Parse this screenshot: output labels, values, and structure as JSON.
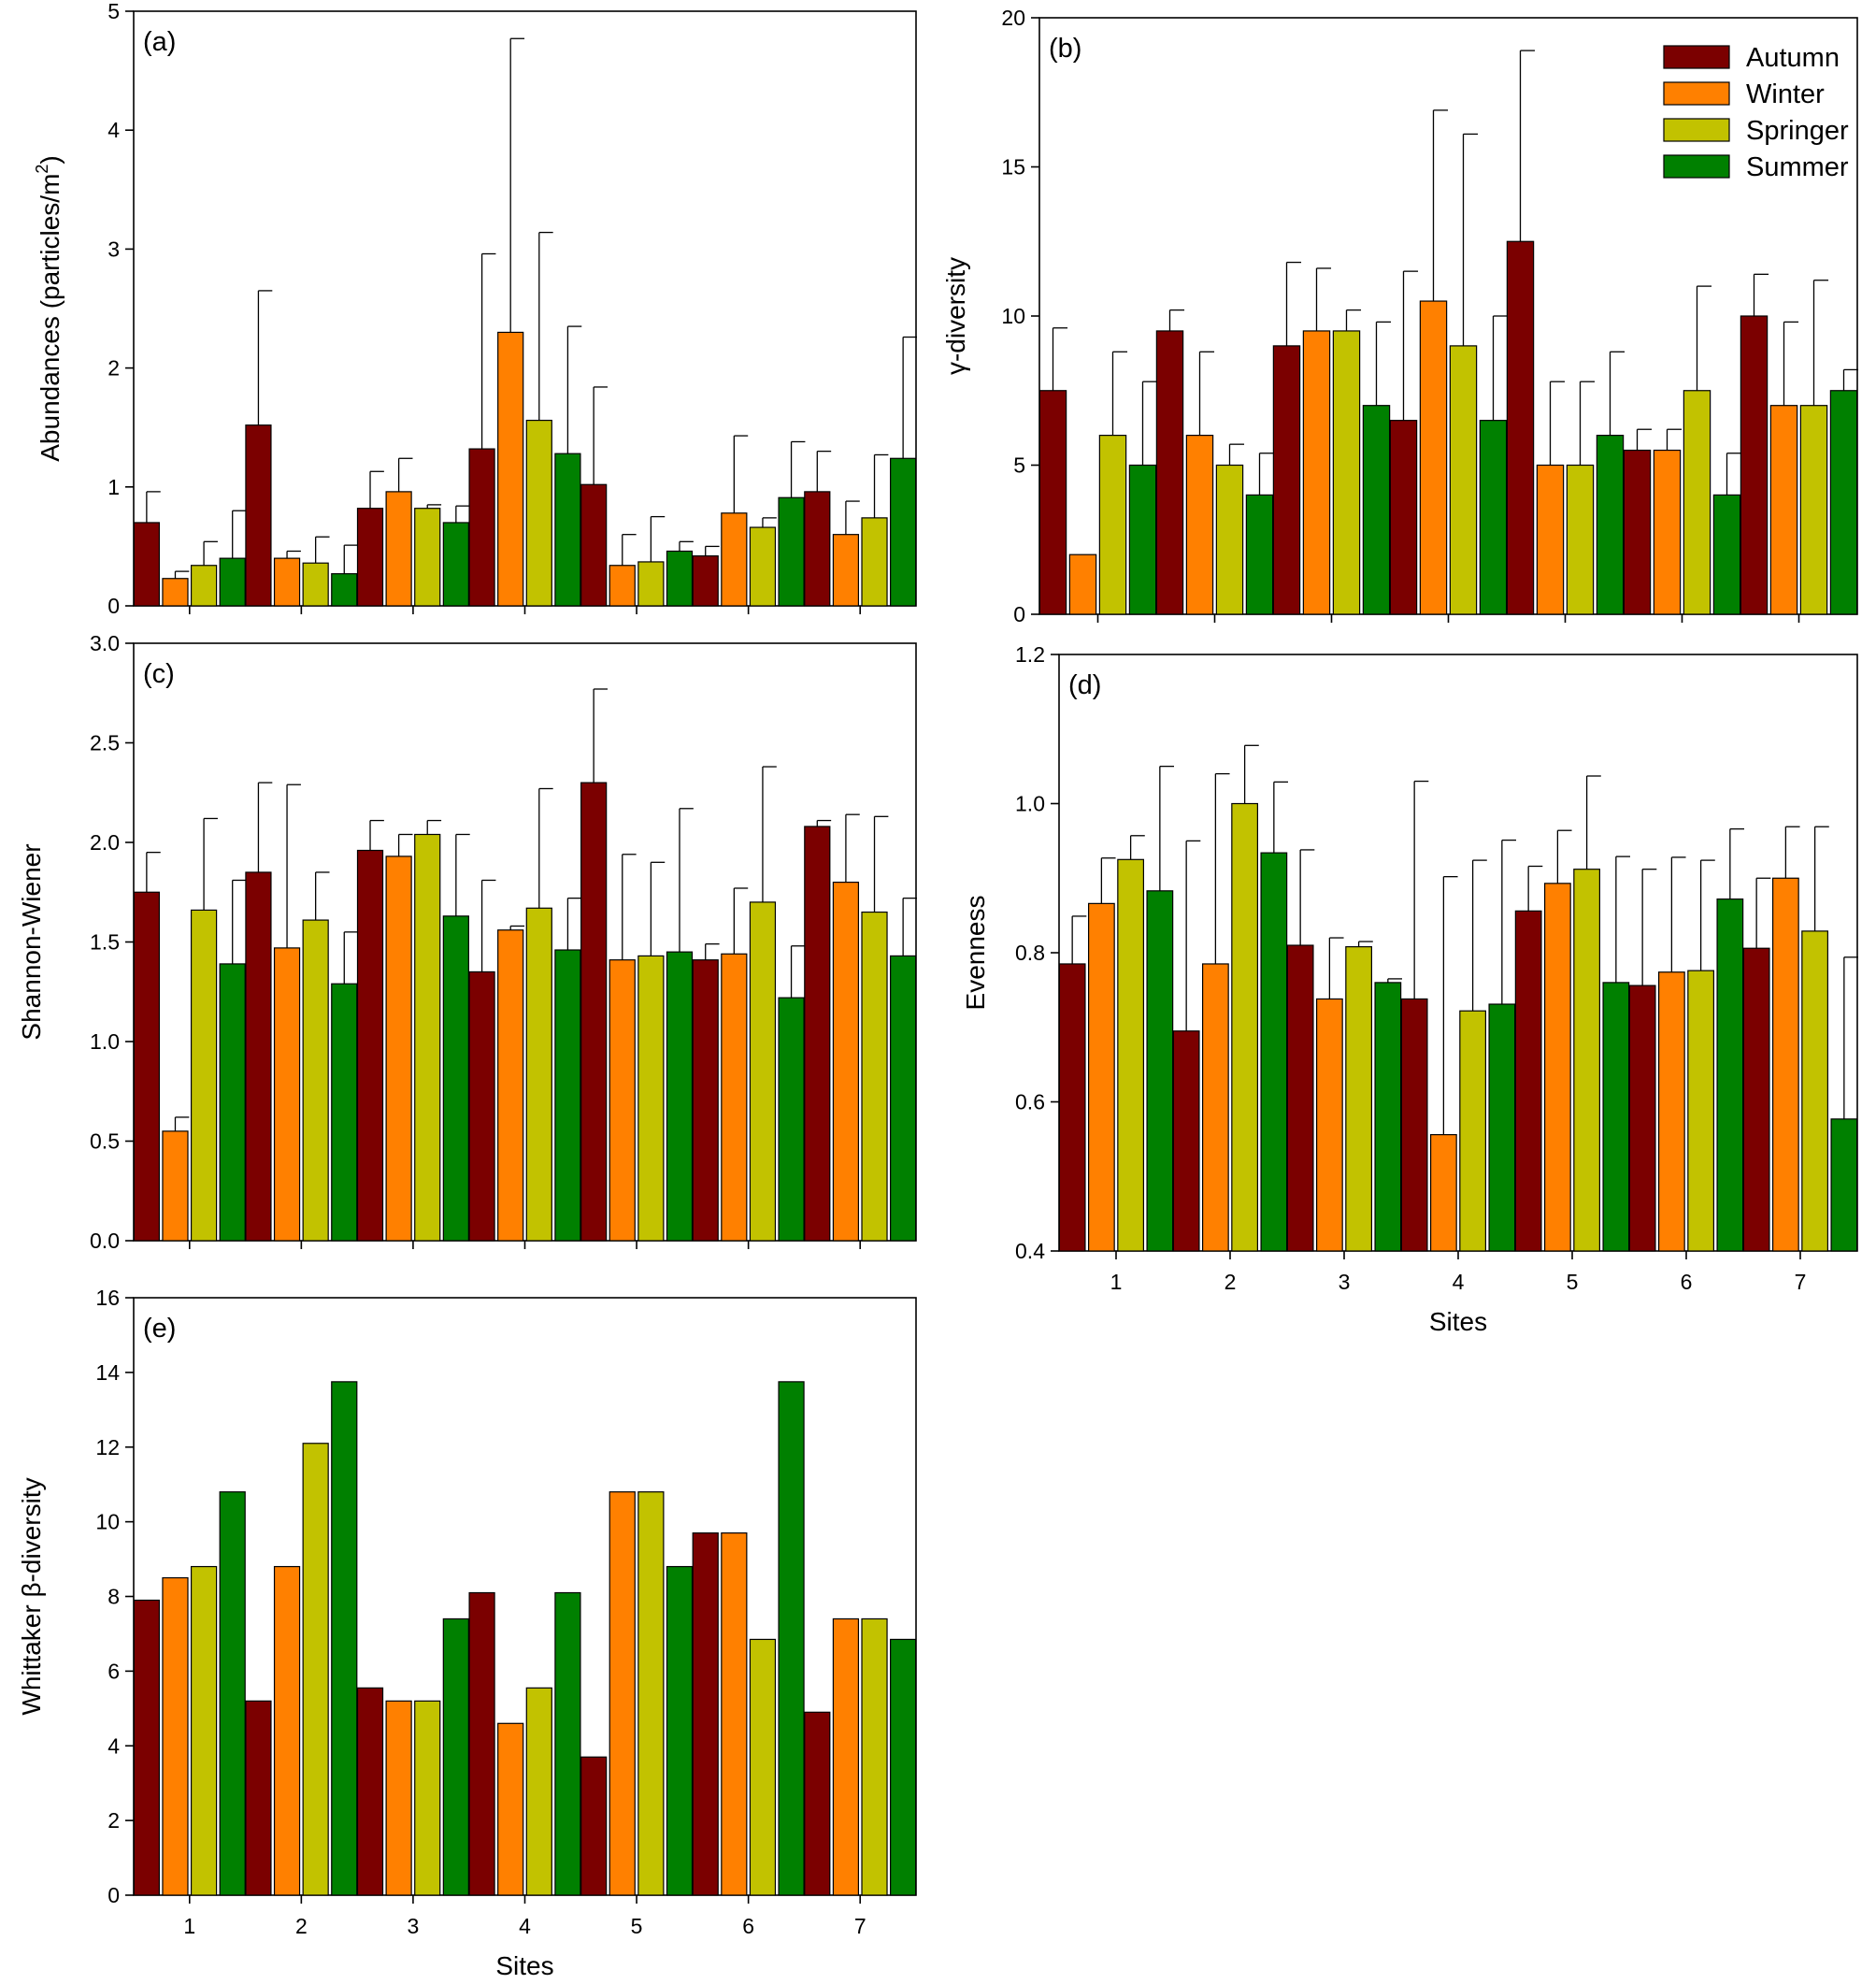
{
  "figure": {
    "series_names": [
      "Autumn",
      "Winter",
      "Springer",
      "Summer"
    ],
    "series_colors": [
      "#7b0000",
      "#ff8000",
      "#c2c200",
      "#008000"
    ]
  },
  "chart_data": [
    {
      "id": "a",
      "type": "bar",
      "panel_label": "(a)",
      "ylabel": "Abundances (particles/m²)",
      "ylabel_main": "Abundances (particles/m",
      "ylabel_sup": "2",
      "ylabel_tail": ")",
      "xlabel": "",
      "ylim": [
        0,
        5
      ],
      "yticks": [
        0,
        1,
        2,
        3,
        4,
        5
      ],
      "ytick_labels": [
        "0",
        "1",
        "2",
        "3",
        "4",
        "5"
      ],
      "categories": [
        "1",
        "2",
        "3",
        "4",
        "5",
        "6",
        "7"
      ],
      "show_xtick_labels": false,
      "series": [
        {
          "name": "Autumn",
          "values": [
            0.7,
            1.52,
            0.82,
            1.32,
            1.02,
            0.42,
            0.96
          ],
          "errors": [
            0.26,
            1.13,
            0.31,
            1.64,
            0.82,
            0.08,
            0.34
          ]
        },
        {
          "name": "Winter",
          "values": [
            0.23,
            0.4,
            0.96,
            2.3,
            0.34,
            0.78,
            0.6
          ],
          "errors": [
            0.06,
            0.06,
            0.28,
            2.47,
            0.26,
            0.65,
            0.28
          ]
        },
        {
          "name": "Springer",
          "values": [
            0.34,
            0.36,
            0.82,
            1.56,
            0.37,
            0.66,
            0.74
          ],
          "errors": [
            0.2,
            0.22,
            0.03,
            1.58,
            0.38,
            0.08,
            0.53
          ]
        },
        {
          "name": "Summer",
          "values": [
            0.4,
            0.27,
            0.7,
            1.28,
            0.46,
            0.91,
            1.24
          ],
          "errors": [
            0.4,
            0.24,
            0.14,
            1.07,
            0.08,
            0.47,
            1.02
          ]
        }
      ]
    },
    {
      "id": "b",
      "type": "bar",
      "panel_label": "(b)",
      "ylabel": "γ-diversity",
      "xlabel": "",
      "ylim": [
        0,
        20
      ],
      "yticks": [
        0,
        5,
        10,
        15,
        20
      ],
      "ytick_labels": [
        "0",
        "5",
        "10",
        "15",
        "20"
      ],
      "categories": [
        "1",
        "2",
        "3",
        "4",
        "5",
        "6",
        "7"
      ],
      "show_xtick_labels": false,
      "legend": {
        "position": "top-right",
        "entries": [
          "Autumn",
          "Winter",
          "Springer",
          "Summer"
        ]
      },
      "series": [
        {
          "name": "Autumn",
          "values": [
            7.5,
            9.5,
            9.0,
            6.5,
            12.5,
            5.5,
            10.0
          ],
          "errors": [
            2.1,
            0.7,
            2.8,
            5.0,
            6.4,
            0.7,
            1.4
          ]
        },
        {
          "name": "Winter",
          "values": [
            2.0,
            6.0,
            9.5,
            10.5,
            5.0,
            5.5,
            7.0
          ],
          "errors": [
            0.0,
            2.8,
            2.1,
            6.4,
            2.8,
            0.7,
            2.8
          ]
        },
        {
          "name": "Springer",
          "values": [
            6.0,
            5.0,
            9.5,
            9.0,
            5.0,
            7.5,
            7.0
          ],
          "errors": [
            2.8,
            0.7,
            0.7,
            7.1,
            2.8,
            3.5,
            4.2
          ]
        },
        {
          "name": "Summer",
          "values": [
            5.0,
            4.0,
            7.0,
            6.5,
            6.0,
            4.0,
            7.5
          ],
          "errors": [
            2.8,
            1.4,
            2.8,
            3.5,
            2.8,
            1.4,
            0.7
          ]
        }
      ]
    },
    {
      "id": "c",
      "type": "bar",
      "panel_label": "(c)",
      "ylabel": "Shannon-Wiener",
      "xlabel": "",
      "ylim": [
        0,
        3.0
      ],
      "yticks": [
        0,
        0.5,
        1.0,
        1.5,
        2.0,
        2.5,
        3.0
      ],
      "ytick_labels": [
        "0.0",
        "0.5",
        "1.0",
        "1.5",
        "2.0",
        "2.5",
        "3.0"
      ],
      "categories": [
        "1",
        "2",
        "3",
        "4",
        "5",
        "6",
        "7"
      ],
      "show_xtick_labels": false,
      "series": [
        {
          "name": "Autumn",
          "values": [
            1.75,
            1.85,
            1.96,
            1.35,
            2.3,
            1.41,
            2.08
          ],
          "errors": [
            0.2,
            0.45,
            0.15,
            0.46,
            0.47,
            0.08,
            0.03
          ]
        },
        {
          "name": "Winter",
          "values": [
            0.55,
            1.47,
            1.93,
            1.56,
            1.41,
            1.44,
            1.8
          ],
          "errors": [
            0.07,
            0.82,
            0.11,
            0.02,
            0.53,
            0.33,
            0.34
          ]
        },
        {
          "name": "Springer",
          "values": [
            1.66,
            1.61,
            2.04,
            1.67,
            1.43,
            1.7,
            1.65
          ],
          "errors": [
            0.46,
            0.24,
            0.07,
            0.6,
            0.47,
            0.68,
            0.48
          ]
        },
        {
          "name": "Summer",
          "values": [
            1.39,
            1.29,
            1.63,
            1.46,
            1.45,
            1.22,
            1.43
          ],
          "errors": [
            0.42,
            0.26,
            0.41,
            0.26,
            0.72,
            0.26,
            0.29
          ]
        }
      ]
    },
    {
      "id": "d",
      "type": "bar",
      "panel_label": "(d)",
      "ylabel": "Evenness",
      "xlabel": "Sites",
      "ylim": [
        0.4,
        1.2
      ],
      "yticks": [
        0.4,
        0.6,
        0.8,
        1.0,
        1.2
      ],
      "ytick_labels": [
        "0.4",
        "0.6",
        "0.8",
        "1.0",
        "1.2"
      ],
      "categories": [
        "1",
        "2",
        "3",
        "4",
        "5",
        "6",
        "7"
      ],
      "show_xtick_labels": true,
      "series": [
        {
          "name": "Autumn",
          "values": [
            0.785,
            0.695,
            0.81,
            0.738,
            0.856,
            0.756,
            0.806
          ],
          "errors": [
            0.064,
            0.255,
            0.128,
            0.292,
            0.06,
            0.156,
            0.094
          ]
        },
        {
          "name": "Winter",
          "values": [
            0.866,
            0.785,
            0.738,
            0.556,
            0.893,
            0.774,
            0.9
          ],
          "errors": [
            0.061,
            0.255,
            0.082,
            0.346,
            0.071,
            0.154,
            0.069
          ]
        },
        {
          "name": "Springer",
          "values": [
            0.925,
            1.0,
            0.808,
            0.722,
            0.912,
            0.776,
            0.829
          ],
          "errors": [
            0.032,
            0.078,
            0.007,
            0.202,
            0.125,
            0.148,
            0.14
          ]
        },
        {
          "name": "Summer",
          "values": [
            0.883,
            0.934,
            0.76,
            0.731,
            0.76,
            0.872,
            0.577
          ],
          "errors": [
            0.167,
            0.095,
            0.005,
            0.22,
            0.169,
            0.094,
            0.217
          ]
        }
      ]
    },
    {
      "id": "e",
      "type": "bar",
      "panel_label": "(e)",
      "ylabel": "Whittaker β-diversity",
      "xlabel": "Sites",
      "ylim": [
        0,
        16
      ],
      "yticks": [
        0,
        2,
        4,
        6,
        8,
        10,
        12,
        14,
        16
      ],
      "ytick_labels": [
        "0",
        "2",
        "4",
        "6",
        "8",
        "10",
        "12",
        "14",
        "16"
      ],
      "categories": [
        "1",
        "2",
        "3",
        "4",
        "5",
        "6",
        "7"
      ],
      "show_xtick_labels": true,
      "series": [
        {
          "name": "Autumn",
          "values": [
            7.9,
            5.2,
            5.55,
            8.1,
            3.7,
            9.7,
            4.9
          ]
        },
        {
          "name": "Winter",
          "values": [
            8.5,
            8.8,
            5.2,
            4.6,
            10.8,
            9.7,
            7.4
          ]
        },
        {
          "name": "Springer",
          "values": [
            8.8,
            12.1,
            5.2,
            5.55,
            10.8,
            6.85,
            7.4
          ]
        },
        {
          "name": "Summer",
          "values": [
            10.8,
            13.75,
            7.4,
            8.1,
            8.8,
            13.75,
            6.85
          ]
        }
      ]
    }
  ]
}
